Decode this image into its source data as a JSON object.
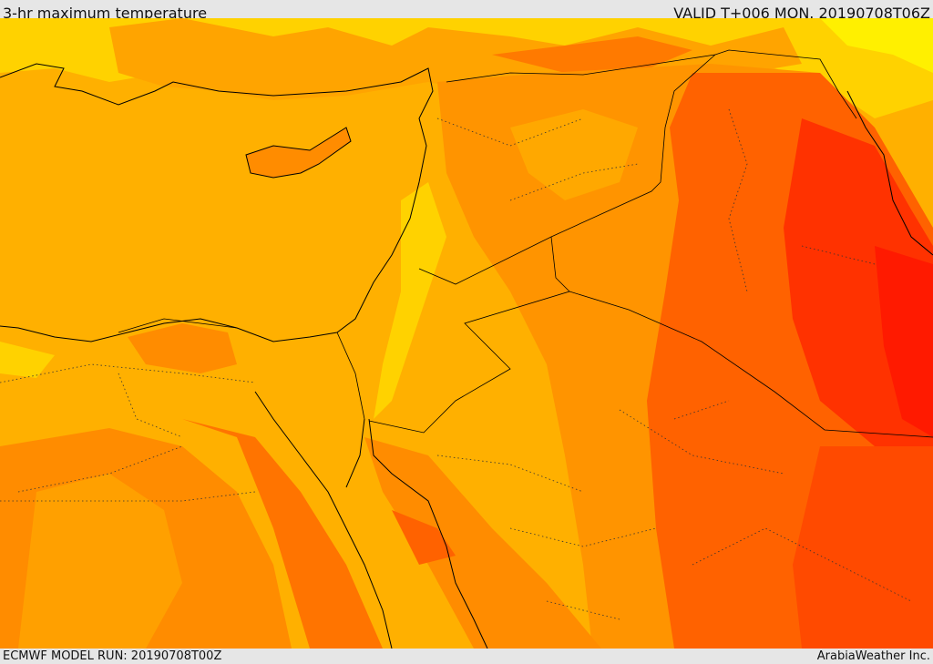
{
  "header": {
    "title": "3-hr maximum temperature",
    "valid": "VALID T+006 MON. 20190708T06Z"
  },
  "footer": {
    "model_run": "ECMWF MODEL RUN: 20190708T00Z",
    "credit": "ArabiaWeather Inc."
  }
}
